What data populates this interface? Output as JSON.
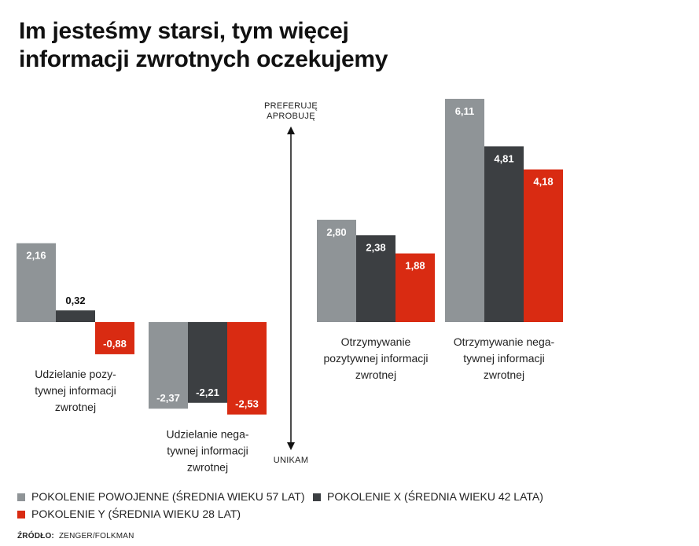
{
  "title": {
    "line1": "Im jesteśmy starsi, tym więcej",
    "line2": "informacji zwrotnych oczekujemy"
  },
  "axis": {
    "top_label_line1": "PREFERUJĘ",
    "top_label_line2": "APROBUJĘ",
    "bottom_label": "UNIKAM"
  },
  "legend": [
    {
      "label": "POKOLENIE POWOJENNE (ŚREDNIA WIEKU 57 LAT)",
      "color": "#8f9497"
    },
    {
      "label": "POKOLENIE X (ŚREDNIA WIEKU 42 LATA)",
      "color": "#3c3f42"
    },
    {
      "label": "POKOLENIE Y (ŚREDNIA WIEKU 28 LAT)",
      "color": "#d92b12"
    }
  ],
  "source": {
    "label": "ŹRÓDŁO:",
    "value": "ZENGER/FOLKMAN"
  },
  "chart_data": {
    "type": "bar",
    "categories": [
      [
        "Udzielanie pozy-",
        "tywnej informacji",
        "zwrotnej"
      ],
      [
        "Udzielanie nega-",
        "tywnej informacji",
        "zwrotnej"
      ],
      [
        "Otrzymywanie",
        "pozytywnej informacji",
        "zwrotnej"
      ],
      [
        "Otrzymywanie nega-",
        "tywnej informacji",
        "zwrotnej"
      ]
    ],
    "series": [
      {
        "name": "POKOLENIE POWOJENNE (ŚREDNIA WIEKU 57 LAT)",
        "color": "#8f9497",
        "values": [
          2.16,
          -2.37,
          2.8,
          6.11
        ],
        "labels": [
          "2,16",
          "-2,37",
          "2,80",
          "6,11"
        ]
      },
      {
        "name": "POKOLENIE X (ŚREDNIA WIEKU 42 LATA)",
        "color": "#3c3f42",
        "values": [
          0.32,
          -2.21,
          2.38,
          4.81
        ],
        "labels": [
          "0,32",
          "-2,21",
          "2,38",
          "4,81"
        ]
      },
      {
        "name": "POKOLENIE Y (ŚREDNIA WIEKU 28 LAT)",
        "color": "#d92b12",
        "values": [
          -0.88,
          -2.53,
          1.88,
          4.18
        ],
        "labels": [
          "-0,88",
          "-2,53",
          "1,88",
          "4,18"
        ]
      }
    ],
    "xlabel": "",
    "ylabel": "",
    "grid": false,
    "legend_position": "bottom"
  }
}
